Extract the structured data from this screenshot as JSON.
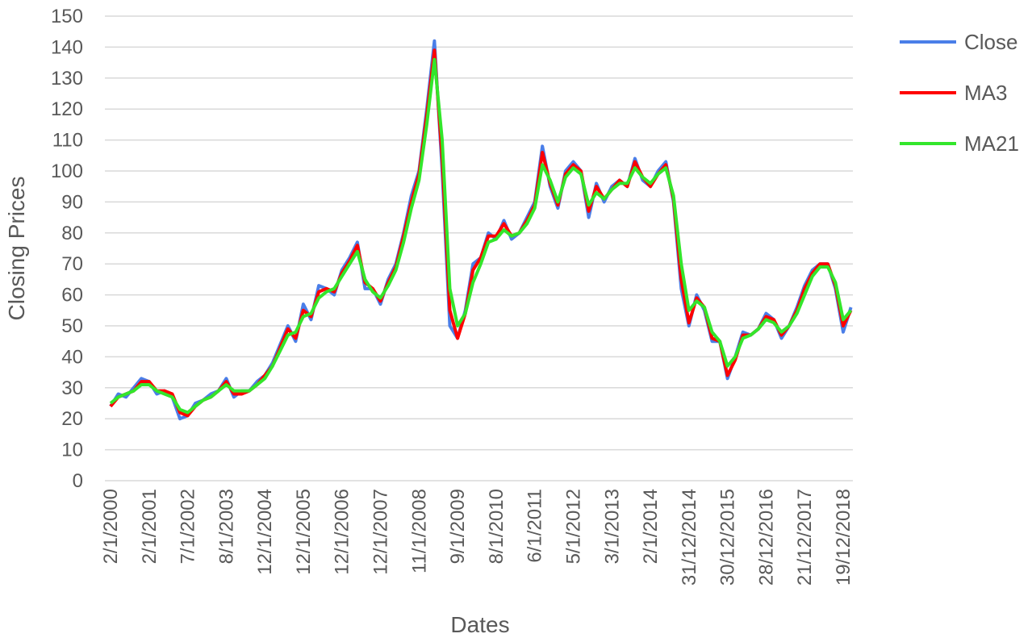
{
  "chart_data": {
    "type": "line",
    "x_label": "Dates",
    "y_label": "Closing Prices",
    "categories": [
      "2/1/2000",
      null,
      null,
      null,
      null,
      "2/1/2001",
      null,
      null,
      null,
      null,
      "7/1/2002",
      null,
      null,
      null,
      null,
      "8/1/2003",
      null,
      null,
      null,
      null,
      "12/1/2004",
      null,
      null,
      null,
      null,
      "12/1/2005",
      null,
      null,
      null,
      null,
      "12/1/2006",
      null,
      null,
      null,
      null,
      "12/1/2007",
      null,
      null,
      null,
      null,
      "11/1/2008",
      null,
      null,
      null,
      null,
      "9/1/2009",
      null,
      null,
      null,
      null,
      "8/1/2010",
      null,
      null,
      null,
      null,
      "6/1/2011",
      null,
      null,
      null,
      null,
      "5/1/2012",
      null,
      null,
      null,
      null,
      "3/1/2013",
      null,
      null,
      null,
      null,
      "2/1/2014",
      null,
      null,
      null,
      null,
      "31/12/2014",
      null,
      null,
      null,
      null,
      "30/12/2015",
      null,
      null,
      null,
      null,
      "28/12/2016",
      null,
      null,
      null,
      null,
      "21/12/2017",
      null,
      null,
      null,
      null,
      "19/12/2018",
      null
    ],
    "series": [
      {
        "name": "Close",
        "color": "#4a7ee8",
        "values": [
          24,
          28,
          27,
          30,
          33,
          32,
          28,
          29,
          27,
          20,
          21,
          25,
          26,
          28,
          29,
          33,
          27,
          29,
          29,
          32,
          34,
          38,
          44,
          50,
          45,
          57,
          52,
          63,
          62,
          60,
          68,
          72,
          77,
          62,
          62,
          57,
          65,
          70,
          80,
          92,
          100,
          120,
          142,
          100,
          50,
          46,
          55,
          70,
          72,
          80,
          78,
          84,
          78,
          80,
          85,
          90,
          108,
          95,
          88,
          100,
          103,
          100,
          85,
          96,
          90,
          95,
          97,
          95,
          104,
          97,
          95,
          100,
          103,
          90,
          62,
          50,
          60,
          55,
          45,
          45,
          33,
          40,
          48,
          47,
          49,
          54,
          52,
          46,
          50,
          56,
          63,
          68,
          70,
          70,
          62,
          48,
          56
        ]
      },
      {
        "name": "MA3",
        "color": "#ff0000",
        "values": [
          24,
          27,
          28,
          29,
          32,
          32,
          29,
          29,
          28,
          22,
          21,
          24,
          26,
          27,
          29,
          32,
          28,
          28,
          29,
          31,
          34,
          37,
          43,
          49,
          46,
          55,
          53,
          61,
          62,
          61,
          67,
          71,
          76,
          64,
          62,
          58,
          64,
          69,
          79,
          90,
          99,
          118,
          139,
          104,
          55,
          46,
          54,
          68,
          72,
          79,
          79,
          83,
          79,
          80,
          84,
          89,
          106,
          96,
          89,
          99,
          102,
          100,
          87,
          95,
          91,
          94,
          97,
          95,
          103,
          98,
          95,
          99,
          102,
          91,
          65,
          51,
          59,
          56,
          46,
          45,
          34,
          39,
          47,
          47,
          49,
          53,
          52,
          47,
          50,
          55,
          62,
          67,
          70,
          70,
          63,
          50,
          55
        ]
      },
      {
        "name": "MA21",
        "color": "#33e62b",
        "values": [
          25,
          27,
          28,
          29,
          31,
          31,
          29,
          28,
          27,
          23,
          22,
          24,
          26,
          27,
          29,
          31,
          29,
          29,
          29,
          31,
          33,
          37,
          42,
          47,
          48,
          53,
          54,
          59,
          61,
          62,
          66,
          70,
          74,
          65,
          61,
          59,
          63,
          68,
          77,
          88,
          97,
          115,
          136,
          110,
          62,
          50,
          54,
          64,
          70,
          77,
          78,
          81,
          79,
          80,
          83,
          88,
          102,
          97,
          90,
          98,
          101,
          99,
          89,
          93,
          91,
          94,
          96,
          96,
          101,
          98,
          96,
          99,
          101,
          92,
          70,
          55,
          58,
          56,
          48,
          45,
          37,
          40,
          46,
          47,
          49,
          52,
          51,
          48,
          50,
          54,
          60,
          66,
          69,
          69,
          64,
          52,
          55
        ]
      }
    ],
    "ylim": [
      0,
      150
    ],
    "yticks": [
      0,
      10,
      20,
      30,
      40,
      50,
      60,
      70,
      80,
      90,
      100,
      110,
      120,
      130,
      140,
      150
    ],
    "grid": true,
    "legend": "right"
  }
}
